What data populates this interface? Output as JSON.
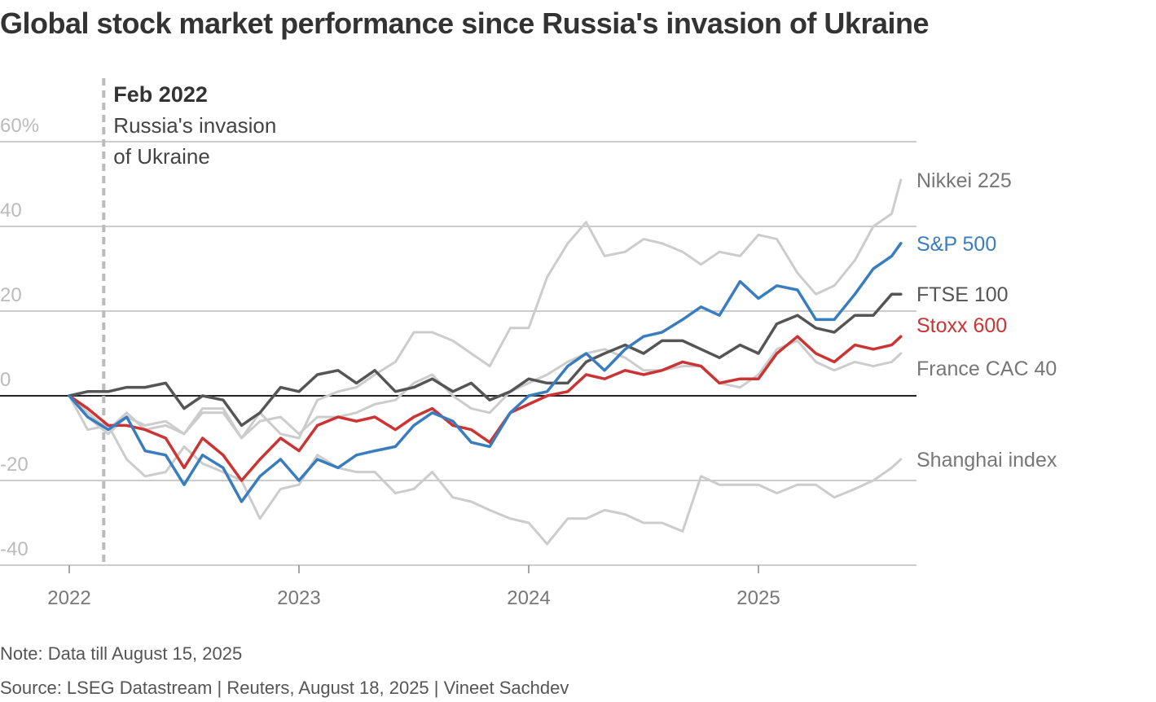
{
  "title": "Global stock market performance since Russia's invasion of Ukraine",
  "note": "Note: Data till August 15, 2025",
  "source": "Source: LSEG Datastream | Reuters, August 18, 2025 | Vineet Sachdev",
  "colors": {
    "nikkei": "#cccccc",
    "sp500": "#3a7dbf",
    "ftse": "#555555",
    "stoxx": "#cc3333",
    "cac": "#cccccc",
    "shanghai": "#cccccc",
    "grid": "#bbbbbb",
    "zero": "#222222",
    "event": "#bbbbbb"
  },
  "chart_data": {
    "type": "line",
    "x_unit": "year (decimal)",
    "xlim": [
      2022,
      2025.75
    ],
    "ylim": [
      -40,
      60
    ],
    "y_ticks": [
      60,
      40,
      20,
      0,
      -20,
      -40
    ],
    "y_tick_labels": [
      "60%",
      "40",
      "20",
      "0",
      "-20",
      "-40"
    ],
    "x_ticks": [
      2022,
      2023,
      2024,
      2025
    ],
    "x_tick_labels": [
      "2022",
      "2023",
      "2024",
      "2025"
    ],
    "grid": true,
    "annotation": {
      "x": 2022.15,
      "title": "Feb 2022",
      "line1": "Russia's invasion",
      "line2": "of Ukraine"
    },
    "series": [
      {
        "name": "Shanghai index",
        "key": "shanghai",
        "width": 3,
        "x": [
          2022,
          2022.08,
          2022.17,
          2022.25,
          2022.33,
          2022.42,
          2022.5,
          2022.58,
          2022.67,
          2022.75,
          2022.83,
          2022.92,
          2023,
          2023.08,
          2023.17,
          2023.25,
          2023.33,
          2023.42,
          2023.5,
          2023.58,
          2023.67,
          2023.75,
          2023.83,
          2023.92,
          2024,
          2024.08,
          2024.17,
          2024.25,
          2024.33,
          2024.42,
          2024.5,
          2024.58,
          2024.67,
          2024.75,
          2024.83,
          2024.92,
          2025,
          2025.08,
          2025.17,
          2025.25,
          2025.33,
          2025.42,
          2025.5,
          2025.58,
          2025.62
        ],
        "y": [
          0,
          -8,
          -7,
          -15,
          -19,
          -18,
          -12,
          -16,
          -18,
          -20,
          -29,
          -22,
          -21,
          -14,
          -17,
          -18,
          -18,
          -23,
          -22,
          -18,
          -24,
          -25,
          -27,
          -29,
          -30,
          -35,
          -29,
          -29,
          -27,
          -28,
          -30,
          -30,
          -32,
          -19,
          -21,
          -21,
          -21,
          -23,
          -21,
          -21,
          -24,
          -22,
          -20,
          -17,
          -15
        ]
      },
      {
        "name": "France CAC 40",
        "key": "cac",
        "width": 3,
        "x": [
          2022,
          2022.08,
          2022.17,
          2022.25,
          2022.33,
          2022.42,
          2022.5,
          2022.58,
          2022.67,
          2022.75,
          2022.83,
          2022.92,
          2023,
          2023.08,
          2023.17,
          2023.25,
          2023.33,
          2023.42,
          2023.5,
          2023.58,
          2023.67,
          2023.75,
          2023.83,
          2023.92,
          2024,
          2024.08,
          2024.17,
          2024.25,
          2024.33,
          2024.42,
          2024.5,
          2024.58,
          2024.67,
          2024.75,
          2024.83,
          2024.92,
          2025,
          2025.08,
          2025.17,
          2025.25,
          2025.33,
          2025.42,
          2025.5,
          2025.58,
          2025.62
        ],
        "y": [
          0,
          -4,
          -8,
          -4,
          -8,
          -7,
          -9,
          -4,
          -4,
          -10,
          -6,
          -5,
          -9,
          -5,
          -5,
          -4,
          -2,
          -1,
          3,
          5,
          0,
          -3,
          -4,
          1,
          3,
          5,
          8,
          10,
          11,
          9,
          6,
          6,
          7,
          7,
          3,
          2,
          5,
          11,
          13,
          8,
          6,
          8,
          7,
          8,
          10
        ]
      },
      {
        "name": "Nikkei 225",
        "key": "nikkei",
        "width": 3,
        "x": [
          2022,
          2022.08,
          2022.17,
          2022.25,
          2022.33,
          2022.42,
          2022.5,
          2022.58,
          2022.67,
          2022.75,
          2022.83,
          2022.92,
          2023,
          2023.08,
          2023.17,
          2023.25,
          2023.33,
          2023.42,
          2023.5,
          2023.58,
          2023.67,
          2023.75,
          2023.83,
          2023.92,
          2024,
          2024.08,
          2024.17,
          2024.25,
          2024.33,
          2024.42,
          2024.5,
          2024.58,
          2024.67,
          2024.75,
          2024.83,
          2024.92,
          2025,
          2025.08,
          2025.17,
          2025.25,
          2025.33,
          2025.42,
          2025.5,
          2025.58,
          2025.62
        ],
        "y": [
          0,
          -5,
          -9,
          -5,
          -7,
          -6,
          -9,
          -3,
          -3,
          -10,
          -4,
          -9,
          -10,
          -1,
          1,
          2,
          5,
          8,
          15,
          15,
          13,
          10,
          7,
          16,
          16,
          28,
          36,
          41,
          33,
          34,
          37,
          36,
          34,
          31,
          34,
          33,
          38,
          37,
          29,
          24,
          26,
          32,
          40,
          43,
          51
        ]
      },
      {
        "name": "Stoxx 600",
        "key": "stoxx",
        "width": 3.5,
        "x": [
          2022,
          2022.08,
          2022.17,
          2022.25,
          2022.33,
          2022.42,
          2022.5,
          2022.58,
          2022.67,
          2022.75,
          2022.83,
          2022.92,
          2023,
          2023.08,
          2023.17,
          2023.25,
          2023.33,
          2023.42,
          2023.5,
          2023.58,
          2023.67,
          2023.75,
          2023.83,
          2023.92,
          2024,
          2024.08,
          2024.17,
          2024.25,
          2024.33,
          2024.42,
          2024.5,
          2024.58,
          2024.67,
          2024.75,
          2024.83,
          2024.92,
          2025,
          2025.08,
          2025.17,
          2025.25,
          2025.33,
          2025.42,
          2025.5,
          2025.58,
          2025.62
        ],
        "y": [
          0,
          -3,
          -7,
          -7,
          -8,
          -10,
          -17,
          -10,
          -14,
          -20,
          -15,
          -10,
          -13,
          -7,
          -5,
          -6,
          -5,
          -8,
          -5,
          -3,
          -7,
          -8,
          -11,
          -4,
          -2,
          0,
          1,
          5,
          4,
          6,
          5,
          6,
          8,
          7,
          3,
          4,
          4,
          10,
          14,
          10,
          8,
          12,
          11,
          12,
          14
        ]
      },
      {
        "name": "FTSE 100",
        "key": "ftse",
        "width": 3.5,
        "x": [
          2022,
          2022.08,
          2022.17,
          2022.25,
          2022.33,
          2022.42,
          2022.5,
          2022.58,
          2022.67,
          2022.75,
          2022.83,
          2022.92,
          2023,
          2023.08,
          2023.17,
          2023.25,
          2023.33,
          2023.42,
          2023.5,
          2023.58,
          2023.67,
          2023.75,
          2023.83,
          2023.92,
          2024,
          2024.08,
          2024.17,
          2024.25,
          2024.33,
          2024.42,
          2024.5,
          2024.58,
          2024.67,
          2024.75,
          2024.83,
          2024.92,
          2025,
          2025.08,
          2025.17,
          2025.25,
          2025.33,
          2025.42,
          2025.5,
          2025.58,
          2025.62
        ],
        "y": [
          0,
          1,
          1,
          2,
          2,
          3,
          -3,
          0,
          -1,
          -7,
          -4,
          2,
          1,
          5,
          6,
          3,
          6,
          1,
          2,
          4,
          1,
          3,
          -1,
          1,
          4,
          3,
          3,
          8,
          10,
          12,
          10,
          13,
          13,
          11,
          9,
          12,
          10,
          17,
          19,
          16,
          15,
          19,
          19,
          24,
          24
        ]
      },
      {
        "name": "S&P 500",
        "key": "sp500",
        "width": 3.5,
        "x": [
          2022,
          2022.08,
          2022.17,
          2022.25,
          2022.33,
          2022.42,
          2022.5,
          2022.58,
          2022.67,
          2022.75,
          2022.83,
          2022.92,
          2023,
          2023.08,
          2023.17,
          2023.25,
          2023.33,
          2023.42,
          2023.5,
          2023.58,
          2023.67,
          2023.75,
          2023.83,
          2023.92,
          2024,
          2024.08,
          2024.17,
          2024.25,
          2024.33,
          2024.42,
          2024.5,
          2024.58,
          2024.67,
          2024.75,
          2024.83,
          2024.92,
          2025,
          2025.08,
          2025.17,
          2025.25,
          2025.33,
          2025.42,
          2025.5,
          2025.58,
          2025.62
        ],
        "y": [
          0,
          -5,
          -8,
          -5,
          -13,
          -14,
          -21,
          -14,
          -17,
          -25,
          -19,
          -15,
          -20,
          -15,
          -17,
          -14,
          -13,
          -12,
          -7,
          -4,
          -6,
          -11,
          -12,
          -4,
          0,
          1,
          7,
          10,
          6,
          11,
          14,
          15,
          18,
          21,
          19,
          27,
          23,
          26,
          25,
          18,
          18,
          24,
          30,
          33,
          36
        ]
      }
    ],
    "legend_placement": "right, labels at line ends"
  }
}
